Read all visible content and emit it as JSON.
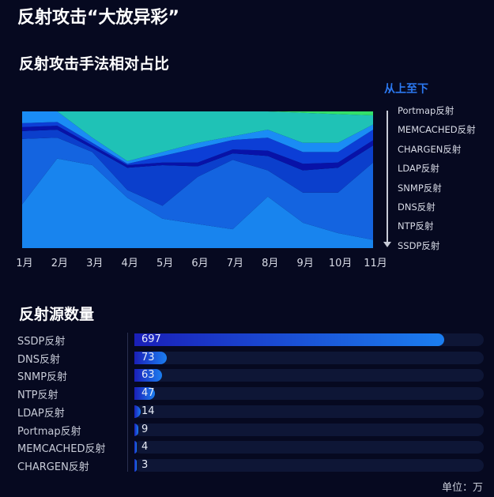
{
  "title": "反射攻击“大放异彩”",
  "chart_data": [
    {
      "type": "area",
      "stacked": "percent",
      "title": "反射攻击手法相对占比",
      "legend_note": "从上至下",
      "legend_placement": "right",
      "categories": [
        "1月",
        "2月",
        "3月",
        "4月",
        "5月",
        "6月",
        "7月",
        "8月",
        "9月",
        "10月",
        "11月"
      ],
      "series": [
        {
          "name": "Portmap反射",
          "color": "#33e06a",
          "values": [
            0,
            0,
            0,
            0,
            0,
            0,
            0,
            0,
            1,
            2,
            2.9
          ]
        },
        {
          "name": "MEMCACHED反射",
          "color": "#1fc2b6",
          "values": [
            0,
            0,
            19.2,
            36.4,
            29.7,
            23,
            18.2,
            13.4,
            22,
            21,
            6.7
          ]
        },
        {
          "name": "CHARGEN反射",
          "color": "#1a8cf5",
          "values": [
            8.6,
            7.7,
            3.8,
            1.9,
            2.9,
            3.8,
            2.7,
            5.8,
            6.7,
            6.7,
            3.8
          ]
        },
        {
          "name": "LDAP反射",
          "color": "#0c3ed6",
          "values": [
            2.9,
            2.8,
            1.9,
            1,
            4.8,
            10.6,
            6.9,
            9.5,
            8.6,
            7.7,
            7.7
          ]
        },
        {
          "name": "SNMP反射",
          "color": "#0812a8",
          "values": [
            2.9,
            2.9,
            1.9,
            1.9,
            1.9,
            2.8,
            2.9,
            3.9,
            4.8,
            3.8,
            3.8
          ]
        },
        {
          "name": "DNS反射",
          "color": "#0b3fcc",
          "values": [
            5.7,
            5.8,
            2.9,
            16.3,
            29.7,
            7.7,
            4.7,
            10.5,
            16.3,
            18.2,
            12.5
          ]
        },
        {
          "name": "NTP反射",
          "color": "#1464e0",
          "values": [
            47.9,
            15.3,
            9.6,
            5.7,
            9.5,
            34.5,
            50.8,
            19.2,
            22,
            29.6,
            56.5
          ]
        },
        {
          "name": "SSDP反射",
          "color": "#1884ee",
          "values": [
            32,
            65.5,
            60.7,
            36.8,
            21.5,
            17.6,
            13.8,
            37.7,
            18.6,
            11,
            6.1
          ]
        }
      ],
      "ylim": [
        0,
        100
      ]
    },
    {
      "type": "bar",
      "orientation": "horizontal",
      "title": "反射源数量",
      "unit_label": "单位：万",
      "categories": [
        "SSDP反射",
        "DNS反射",
        "SNMP反射",
        "NTP反射",
        "LDAP反射",
        "Portmap反射",
        "MEMCACHED反射",
        "CHARGEN反射"
      ],
      "values": [
        697,
        73,
        63,
        47,
        14,
        9,
        4,
        3
      ],
      "xlim": [
        0,
        785
      ]
    }
  ]
}
